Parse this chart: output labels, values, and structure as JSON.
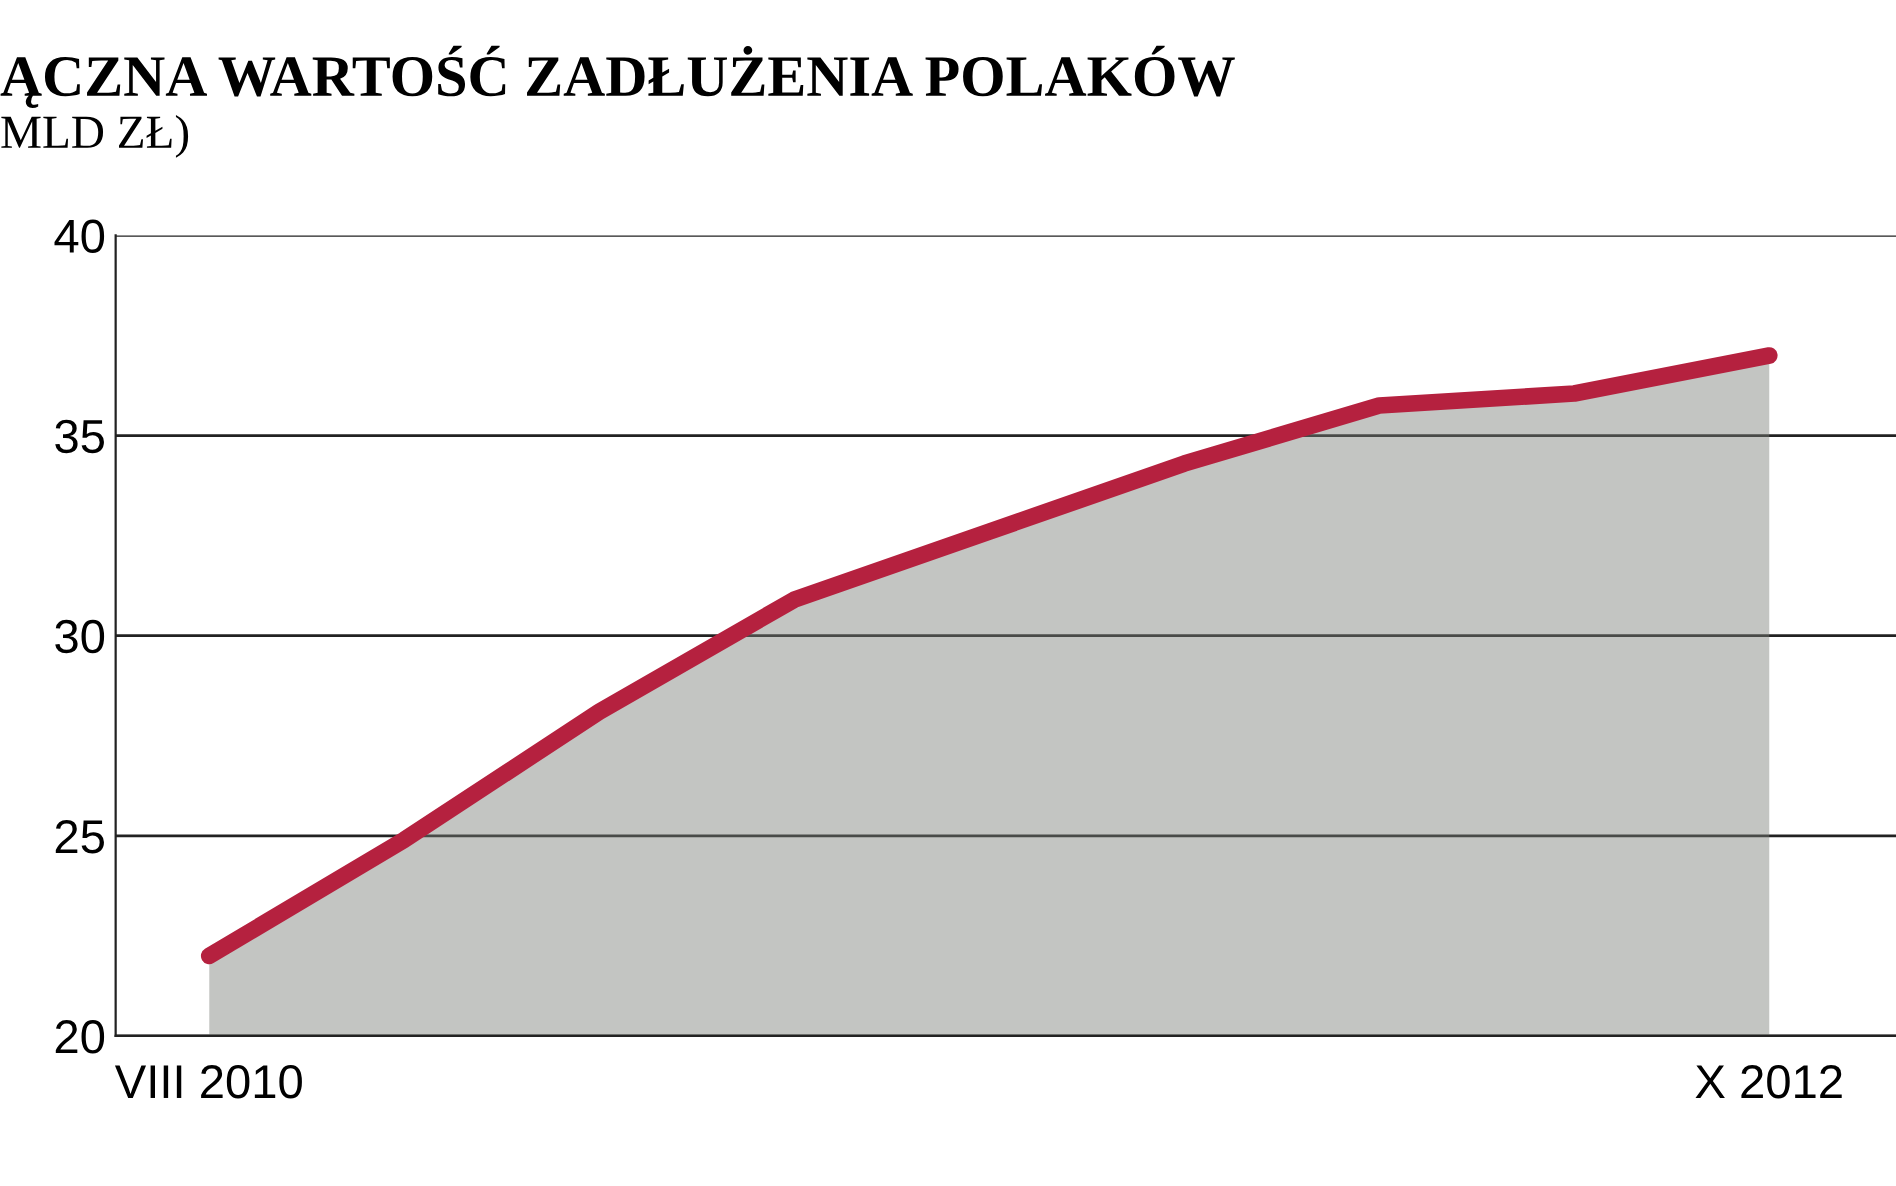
{
  "chart_data": {
    "type": "area",
    "title": "ĄCZNA WARTOŚĆ ZADŁUŻENIA POLAKÓW",
    "subtitle": "MLD ZŁ)",
    "categories": [
      "VIII 2010",
      null,
      null,
      null,
      null,
      null,
      null,
      null,
      "X 2012"
    ],
    "series": [
      {
        "color": "#b5213f",
        "values": [
          22,
          24.9,
          28.1,
          30.9,
          32.6,
          34.3,
          35.75,
          36.05,
          37
        ]
      }
    ],
    "ylim": [
      20,
      40
    ],
    "yticks": [
      20,
      25,
      30,
      35,
      40
    ],
    "grid": "y",
    "legend": false
  }
}
